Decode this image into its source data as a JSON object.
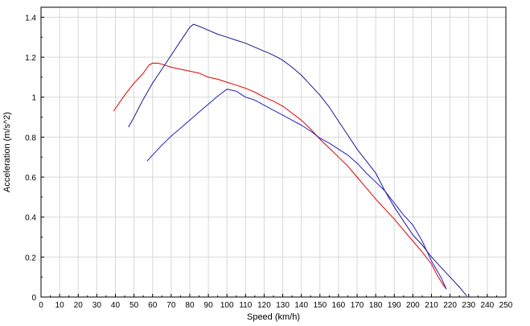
{
  "chart_data": {
    "type": "line",
    "title": "",
    "xlabel": "Speed (km/h)",
    "ylabel": "Acceleration (m/s^2)",
    "xlim": [
      0,
      250
    ],
    "ylim": [
      0,
      1.45
    ],
    "xticks": [
      0,
      10,
      20,
      30,
      40,
      50,
      60,
      70,
      80,
      90,
      100,
      110,
      120,
      130,
      140,
      150,
      160,
      170,
      180,
      190,
      200,
      210,
      220,
      230,
      240,
      250
    ],
    "yticks": [
      0,
      0.2,
      0.4,
      0.6,
      0.8,
      1,
      1.2,
      1.4
    ],
    "xtick_labels": [
      "0",
      "10",
      "20",
      "30",
      "40",
      "50",
      "60",
      "70",
      "80",
      "90",
      "100",
      "110",
      "120",
      "130",
      "140",
      "150",
      "160",
      "170",
      "180",
      "190",
      "200",
      "210",
      "220",
      "230",
      "240",
      "250"
    ],
    "ytick_labels": [
      "0",
      "0.2",
      "0.4",
      "0.6",
      "0.8",
      "1",
      "1.2",
      "1.4"
    ],
    "grid": true,
    "legend": "none",
    "colors": {
      "red": "#e00000",
      "navy": "#1a1a8c",
      "blue": "#2020c0",
      "light_blue": "#7070e0",
      "grid": "#d8d8d8"
    },
    "series": [
      {
        "color": "red",
        "x": [
          39,
          45,
          50,
          55,
          58,
          60,
          63,
          65,
          70,
          75,
          80,
          85,
          90,
          95,
          100,
          105,
          110,
          115,
          120,
          125,
          130,
          135,
          140,
          145,
          150,
          155,
          160,
          165,
          170,
          175,
          180,
          185,
          190,
          195,
          200,
          205,
          210,
          213,
          216,
          218
        ],
        "y": [
          0.93,
          1.01,
          1.07,
          1.12,
          1.16,
          1.17,
          1.17,
          1.165,
          1.15,
          1.14,
          1.13,
          1.12,
          1.1,
          1.09,
          1.075,
          1.06,
          1.045,
          1.025,
          1.0,
          0.98,
          0.955,
          0.92,
          0.885,
          0.84,
          0.79,
          0.745,
          0.7,
          0.655,
          0.6,
          0.545,
          0.49,
          0.44,
          0.39,
          0.335,
          0.28,
          0.225,
          0.165,
          0.11,
          0.065,
          0.04
        ]
      },
      {
        "color": "navy",
        "x": [
          47,
          50,
          55,
          60,
          65,
          70,
          75,
          80,
          82,
          85,
          90,
          95,
          100,
          105,
          110,
          115,
          120,
          125,
          130,
          135,
          140,
          145,
          150,
          155,
          160,
          165,
          170,
          175,
          180,
          185,
          190,
          195,
          200,
          205,
          210,
          215,
          220,
          225,
          229
        ],
        "y": [
          0.85,
          0.9,
          0.99,
          1.07,
          1.14,
          1.21,
          1.28,
          1.35,
          1.365,
          1.355,
          1.335,
          1.315,
          1.3,
          1.285,
          1.27,
          1.25,
          1.23,
          1.21,
          1.185,
          1.15,
          1.11,
          1.06,
          1.01,
          0.95,
          0.88,
          0.81,
          0.74,
          0.68,
          0.62,
          0.53,
          0.45,
          0.38,
          0.31,
          0.26,
          0.2,
          0.15,
          0.1,
          0.05,
          0.005
        ]
      },
      {
        "color": "blue",
        "x": [
          57,
          60,
          65,
          70,
          75,
          80,
          85,
          90,
          95,
          100,
          105,
          110,
          115,
          120,
          125,
          130,
          135,
          140,
          145,
          150,
          155,
          160,
          165,
          170,
          175,
          180,
          185,
          190,
          195,
          200,
          205,
          210,
          215,
          218
        ],
        "y": [
          0.68,
          0.71,
          0.76,
          0.805,
          0.845,
          0.885,
          0.925,
          0.965,
          1.005,
          1.04,
          1.03,
          1.0,
          0.985,
          0.96,
          0.935,
          0.91,
          0.885,
          0.86,
          0.83,
          0.795,
          0.77,
          0.74,
          0.71,
          0.67,
          0.62,
          0.575,
          0.53,
          0.47,
          0.41,
          0.36,
          0.28,
          0.18,
          0.1,
          0.04
        ]
      }
    ]
  }
}
